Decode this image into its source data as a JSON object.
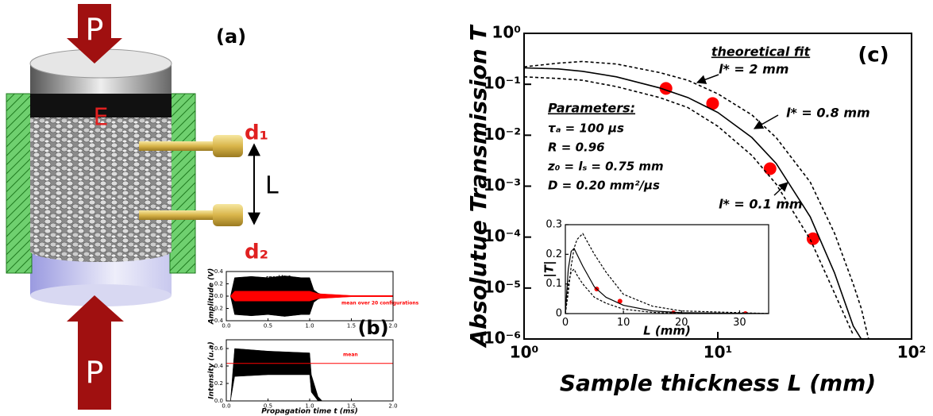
{
  "panel_a": {
    "label": "(a)",
    "top_force": "P",
    "electrode": "E",
    "detector_1": "d₁",
    "distance": "L",
    "detector_2": "d₂",
    "bottom_force": "P"
  },
  "chart_data": [
    {
      "type": "band",
      "ylabel": "Amplitude (V)",
      "xlim": [
        0,
        2
      ],
      "ylim": [
        -0.4,
        0.4
      ],
      "xticks": [
        {
          "value": 0,
          "label": "0.0"
        },
        {
          "value": 0.5,
          "label": "0.5"
        },
        {
          "value": 1,
          "label": "1.0"
        },
        {
          "value": 1.5,
          "label": "1.5"
        },
        {
          "value": 2,
          "label": "2.0"
        }
      ],
      "yticks": [
        {
          "value": -0.4,
          "label": "-0.4"
        },
        {
          "value": -0.2,
          "label": "-0.2"
        },
        {
          "value": 0,
          "label": "0.0"
        },
        {
          "value": 0.2,
          "label": "0.2"
        },
        {
          "value": 0.4,
          "label": "0.4"
        }
      ],
      "series": [
        {
          "name": "speckle 1",
          "color": "#000000",
          "x": [
            0.05,
            0.1,
            0.3,
            0.5,
            0.7,
            0.9,
            1.0,
            1.05,
            1.1,
            1.2
          ],
          "upper": [
            0,
            0.3,
            0.32,
            0.3,
            0.33,
            0.3,
            0.3,
            0.1,
            0.05,
            0
          ],
          "lower": [
            0,
            -0.3,
            -0.32,
            -0.3,
            -0.33,
            -0.3,
            -0.3,
            -0.1,
            -0.05,
            0
          ]
        },
        {
          "name": "mean over 20 configurations",
          "color": "#ff0000",
          "x": [
            0.05,
            0.1,
            1.0,
            1.1,
            1.5,
            2.0
          ],
          "upper": [
            0,
            0.08,
            0.08,
            0.04,
            0.01,
            0.01
          ],
          "lower": [
            0,
            -0.08,
            -0.08,
            -0.04,
            -0.01,
            -0.01
          ]
        }
      ]
    },
    {
      "type": "band",
      "panel_label": "(b)",
      "xlabel": "Propagation time t (ms)",
      "ylabel": "Intensity (u.a)",
      "xlim": [
        0,
        2
      ],
      "ylim": [
        0,
        0.7
      ],
      "xticks": [
        {
          "value": 0,
          "label": "0.0"
        },
        {
          "value": 0.5,
          "label": "0.5"
        },
        {
          "value": 1,
          "label": "1.0"
        },
        {
          "value": 1.5,
          "label": "1.5"
        },
        {
          "value": 2,
          "label": "2.0"
        }
      ],
      "yticks": [
        {
          "value": 0,
          "label": "0.0"
        },
        0.2,
        0.4,
        0.6
      ],
      "series": [
        {
          "color": "#000000",
          "x": [
            0.05,
            0.1,
            0.5,
            1.0,
            1.02,
            1.1,
            1.15
          ],
          "upper": [
            0,
            0.6,
            0.57,
            0.55,
            0.3,
            0.05,
            0
          ],
          "lower": [
            0,
            0.28,
            0.3,
            0.3,
            0.1,
            0,
            0
          ]
        },
        {
          "name": "mean",
          "color": "#ff0000",
          "x": [
            0,
            2
          ],
          "values": [
            0.43,
            0.43
          ]
        }
      ]
    },
    {
      "type": "scatter",
      "panel_label": "(c)",
      "xlabel": "Sample thickness L (mm)",
      "ylabel": "Absolutue Transmission T",
      "xlog": true,
      "ylog": true,
      "xlim": [
        1,
        100
      ],
      "ylim": [
        1e-06,
        1
      ],
      "xticks": [
        {
          "value": 1,
          "label": "10⁰"
        },
        {
          "value": 10,
          "label": "10¹"
        },
        {
          "value": 100,
          "label": "10²"
        }
      ],
      "yticks": [
        {
          "value": 1e-06,
          "label": "10⁻⁶"
        },
        {
          "value": 1e-05,
          "label": "10⁻⁵"
        },
        {
          "value": 0.0001,
          "label": "10⁻⁴"
        },
        {
          "value": 0.001,
          "label": "10⁻³"
        },
        {
          "value": 0.01,
          "label": "10⁻²"
        },
        {
          "value": 0.1,
          "label": "10⁻¹"
        },
        {
          "value": 1,
          "label": "10⁰"
        }
      ],
      "annotations": {
        "fit_title": "theoretical fit",
        "parameters_title": "Parameters:",
        "parameters": [
          "τₐ = 100 µs",
          "R = 0.96",
          "z₀ = lₛ = 0.75 mm",
          "D = 0.20 mm²/µs"
        ]
      },
      "series": [
        {
          "mode": "markers",
          "color": "#ff0000",
          "x": [
            5.4,
            9.4,
            18.6,
            31
          ],
          "values": [
            0.083,
            0.042,
            0.0022,
            9.3e-05
          ]
        },
        {
          "name": "l* = 2 mm",
          "mode": "lines",
          "dash": true,
          "color": "#000000",
          "x": [
            1,
            1.5,
            2,
            3,
            5,
            7,
            10,
            15,
            20,
            30,
            40,
            50,
            55,
            60
          ],
          "values": [
            0.22,
            0.26,
            0.28,
            0.25,
            0.17,
            0.12,
            0.065,
            0.025,
            0.009,
            0.0012,
            0.00012,
            1.2e-05,
            4e-06,
            1e-06
          ]
        },
        {
          "name": "l* = 0.8 mm",
          "mode": "lines",
          "color": "#000000",
          "x": [
            1,
            1.5,
            2,
            3,
            5,
            7,
            10,
            15,
            20,
            30,
            40,
            50,
            55
          ],
          "values": [
            0.21,
            0.2,
            0.18,
            0.14,
            0.085,
            0.055,
            0.028,
            0.009,
            0.0028,
            0.00025,
            2e-05,
            1.8e-06,
            1e-06
          ]
        },
        {
          "name": "l* = 0.1 mm",
          "mode": "lines",
          "dash": true,
          "color": "#000000",
          "x": [
            1,
            1.5,
            2,
            3,
            5,
            7,
            10,
            15,
            20,
            30,
            40,
            50
          ],
          "values": [
            0.14,
            0.13,
            0.12,
            0.09,
            0.055,
            0.035,
            0.015,
            0.004,
            0.0011,
            9e-05,
            8e-06,
            1.2e-06
          ]
        }
      ]
    },
    {
      "type": "scatter",
      "xlabel": "L (mm)",
      "ylabel": "|T|",
      "xlim": [
        0,
        35
      ],
      "ylim": [
        0,
        0.3
      ],
      "xticks": [
        0,
        10,
        20,
        30
      ],
      "yticks": [
        0,
        0.1,
        0.2,
        0.3
      ],
      "series": [
        {
          "mode": "markers",
          "color": "#ff0000",
          "x": [
            5.4,
            9.4,
            18.6,
            31
          ],
          "values": [
            0.083,
            0.042,
            0.0022,
            0.0001
          ]
        },
        {
          "mode": "lines",
          "dash": true,
          "color": "#000000",
          "x": [
            0,
            0.5,
            1,
            1.5,
            2,
            3,
            5,
            7,
            10,
            15,
            20,
            35
          ],
          "values": [
            0,
            0.07,
            0.16,
            0.22,
            0.25,
            0.27,
            0.2,
            0.14,
            0.065,
            0.025,
            0.009,
            0.0002
          ]
        },
        {
          "mode": "lines",
          "color": "#000000",
          "x": [
            0,
            0.5,
            1,
            1.5,
            2,
            3,
            5,
            7,
            10,
            15,
            20,
            35
          ],
          "values": [
            0,
            0.15,
            0.21,
            0.22,
            0.2,
            0.16,
            0.09,
            0.055,
            0.028,
            0.009,
            0.003,
            0
          ]
        },
        {
          "mode": "lines",
          "dash": true,
          "color": "#000000",
          "x": [
            0,
            0.5,
            1,
            1.5,
            2,
            3,
            5,
            7,
            10,
            15,
            20,
            35
          ],
          "values": [
            0,
            0.1,
            0.14,
            0.15,
            0.13,
            0.1,
            0.055,
            0.035,
            0.015,
            0.004,
            0.0011,
            0
          ]
        }
      ]
    }
  ]
}
